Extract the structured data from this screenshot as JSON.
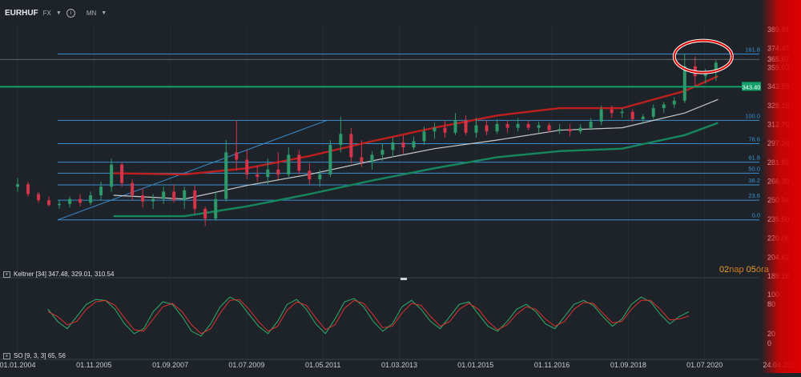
{
  "header": {
    "symbol": "EURHUF",
    "market": "FX",
    "timeframe": "MN",
    "info_icon": "info-icon"
  },
  "colors": {
    "background": "#1d2329",
    "up": "#2e9a6a",
    "down": "#d6344a",
    "keltner_upper": "#c01f1f",
    "keltner_mid": "#c9c9c9",
    "keltner_lower": "#16865f",
    "fib_line": "#3b8fd0",
    "hline": "#11a06a",
    "so_k": "#2fae6a",
    "so_d": "#e0312e",
    "highlight": "#e00000"
  },
  "keltner_label": "Keltner [34] 347.48, 329.01, 310.54",
  "so_label": "SO [9, 3, 3] 65, 56",
  "countdown": {
    "value1": "02",
    "unit1": "nap",
    "value2": "05",
    "unit2": "óra"
  },
  "chart_data": [
    {
      "type": "candlestick",
      "title": "EURHUF",
      "y_axis_ticks": [
        389.91,
        374.47,
        359.03,
        343.59,
        328.15,
        312.7,
        297.26,
        281.82,
        266.38,
        250.94,
        235.5,
        220.06,
        204.62,
        189.18
      ],
      "y_axis_labels": [
        "389.91",
        "374.47",
        "359.03",
        "343.59",
        "328.15",
        "312.70",
        "297.26",
        "281.82",
        "266.38",
        "250.94",
        "235.50",
        "220.06",
        "204.62",
        "189.18"
      ],
      "ylim": [
        189.18,
        400
      ],
      "x_ticks": [
        "01.01.2004",
        "01.11.2005",
        "01.09.2007",
        "01.07.2009",
        "01.05.2011",
        "01.03.2013",
        "01.01.2015",
        "01.11.2016",
        "01.09.2018",
        "01.07.2020",
        "24.04.2022"
      ],
      "last_price_label": "365.67",
      "horizontal_line": {
        "value": 343.4,
        "label": "343.40"
      },
      "fibonacci": {
        "low": 235.0,
        "high": 370.0,
        "levels": [
          {
            "label": "0.0",
            "value": 235.0
          },
          {
            "label": "23.6",
            "value": 251.0
          },
          {
            "label": "38.2",
            "value": 263.5
          },
          {
            "label": "50.0",
            "value": 273.0
          },
          {
            "label": "61.8",
            "value": 282.0
          },
          {
            "label": "78.6",
            "value": 297.0
          },
          {
            "label": "100.0",
            "value": 316.0
          },
          {
            "label": "161.8",
            "value": 370.0
          }
        ]
      },
      "trendline": {
        "from": [
          "2005-04",
          235.0
        ],
        "to": [
          "2011-06",
          316.0
        ]
      },
      "candles": [
        {
          "t": "2004-01",
          "o": 262,
          "h": 269,
          "l": 258,
          "c": 264
        },
        {
          "t": "2004-04",
          "o": 264,
          "h": 266,
          "l": 254,
          "c": 256
        },
        {
          "t": "2004-07",
          "o": 256,
          "h": 258,
          "l": 249,
          "c": 251
        },
        {
          "t": "2004-10",
          "o": 251,
          "h": 254,
          "l": 246,
          "c": 247
        },
        {
          "t": "2005-01",
          "o": 247,
          "h": 251,
          "l": 244,
          "c": 248
        },
        {
          "t": "2005-04",
          "o": 248,
          "h": 254,
          "l": 245,
          "c": 252
        },
        {
          "t": "2005-07",
          "o": 252,
          "h": 256,
          "l": 246,
          "c": 249
        },
        {
          "t": "2005-10",
          "o": 249,
          "h": 258,
          "l": 247,
          "c": 255
        },
        {
          "t": "2006-01",
          "o": 255,
          "h": 266,
          "l": 251,
          "c": 262
        },
        {
          "t": "2006-04",
          "o": 262,
          "h": 285,
          "l": 258,
          "c": 280
        },
        {
          "t": "2006-07",
          "o": 280,
          "h": 282,
          "l": 262,
          "c": 265
        },
        {
          "t": "2006-10",
          "o": 265,
          "h": 268,
          "l": 251,
          "c": 255
        },
        {
          "t": "2007-01",
          "o": 255,
          "h": 261,
          "l": 245,
          "c": 250
        },
        {
          "t": "2007-04",
          "o": 250,
          "h": 256,
          "l": 244,
          "c": 252
        },
        {
          "t": "2007-07",
          "o": 252,
          "h": 262,
          "l": 248,
          "c": 258
        },
        {
          "t": "2007-10",
          "o": 258,
          "h": 264,
          "l": 249,
          "c": 251
        },
        {
          "t": "2008-01",
          "o": 251,
          "h": 262,
          "l": 244,
          "c": 259
        },
        {
          "t": "2008-04",
          "o": 259,
          "h": 263,
          "l": 240,
          "c": 244
        },
        {
          "t": "2008-07",
          "o": 244,
          "h": 246,
          "l": 230,
          "c": 236
        },
        {
          "t": "2008-10",
          "o": 236,
          "h": 258,
          "l": 234,
          "c": 252
        },
        {
          "t": "2009-01",
          "o": 252,
          "h": 300,
          "l": 250,
          "c": 290
        },
        {
          "t": "2009-04",
          "o": 290,
          "h": 316,
          "l": 275,
          "c": 284
        },
        {
          "t": "2009-07",
          "o": 284,
          "h": 292,
          "l": 268,
          "c": 272
        },
        {
          "t": "2009-10",
          "o": 272,
          "h": 279,
          "l": 266,
          "c": 270
        },
        {
          "t": "2010-01",
          "o": 270,
          "h": 285,
          "l": 264,
          "c": 276
        },
        {
          "t": "2010-04",
          "o": 276,
          "h": 290,
          "l": 268,
          "c": 272
        },
        {
          "t": "2010-07",
          "o": 272,
          "h": 294,
          "l": 270,
          "c": 288
        },
        {
          "t": "2010-10",
          "o": 288,
          "h": 292,
          "l": 272,
          "c": 275
        },
        {
          "t": "2011-01",
          "o": 275,
          "h": 281,
          "l": 264,
          "c": 268
        },
        {
          "t": "2011-04",
          "o": 268,
          "h": 276,
          "l": 262,
          "c": 272
        },
        {
          "t": "2011-07",
          "o": 272,
          "h": 300,
          "l": 270,
          "c": 296
        },
        {
          "t": "2011-10",
          "o": 296,
          "h": 319,
          "l": 290,
          "c": 305
        },
        {
          "t": "2012-01",
          "o": 305,
          "h": 310,
          "l": 281,
          "c": 286
        },
        {
          "t": "2012-04",
          "o": 286,
          "h": 300,
          "l": 278,
          "c": 282
        },
        {
          "t": "2012-07",
          "o": 282,
          "h": 291,
          "l": 276,
          "c": 288
        },
        {
          "t": "2012-10",
          "o": 288,
          "h": 297,
          "l": 283,
          "c": 292
        },
        {
          "t": "2013-01",
          "o": 292,
          "h": 302,
          "l": 286,
          "c": 298
        },
        {
          "t": "2013-04",
          "o": 298,
          "h": 304,
          "l": 289,
          "c": 294
        },
        {
          "t": "2013-07",
          "o": 294,
          "h": 303,
          "l": 292,
          "c": 299
        },
        {
          "t": "2013-10",
          "o": 299,
          "h": 311,
          "l": 296,
          "c": 307
        },
        {
          "t": "2014-01",
          "o": 307,
          "h": 314,
          "l": 301,
          "c": 310
        },
        {
          "t": "2014-04",
          "o": 310,
          "h": 316,
          "l": 302,
          "c": 306
        },
        {
          "t": "2014-07",
          "o": 306,
          "h": 322,
          "l": 304,
          "c": 316
        },
        {
          "t": "2014-10",
          "o": 316,
          "h": 320,
          "l": 304,
          "c": 306
        },
        {
          "t": "2015-01",
          "o": 306,
          "h": 318,
          "l": 302,
          "c": 312
        },
        {
          "t": "2015-04",
          "o": 312,
          "h": 316,
          "l": 304,
          "c": 307
        },
        {
          "t": "2015-07",
          "o": 307,
          "h": 317,
          "l": 305,
          "c": 313
        },
        {
          "t": "2015-10",
          "o": 313,
          "h": 316,
          "l": 306,
          "c": 310
        },
        {
          "t": "2016-01",
          "o": 310,
          "h": 318,
          "l": 307,
          "c": 313
        },
        {
          "t": "2016-04",
          "o": 313,
          "h": 316,
          "l": 308,
          "c": 310
        },
        {
          "t": "2016-07",
          "o": 310,
          "h": 315,
          "l": 306,
          "c": 312
        },
        {
          "t": "2016-10",
          "o": 312,
          "h": 314,
          "l": 306,
          "c": 308
        },
        {
          "t": "2017-01",
          "o": 308,
          "h": 313,
          "l": 305,
          "c": 309
        },
        {
          "t": "2017-04",
          "o": 309,
          "h": 313,
          "l": 303,
          "c": 307
        },
        {
          "t": "2017-07",
          "o": 307,
          "h": 313,
          "l": 305,
          "c": 310
        },
        {
          "t": "2017-10",
          "o": 310,
          "h": 318,
          "l": 308,
          "c": 315
        },
        {
          "t": "2018-01",
          "o": 315,
          "h": 328,
          "l": 312,
          "c": 325
        },
        {
          "t": "2018-04",
          "o": 325,
          "h": 328,
          "l": 318,
          "c": 322
        },
        {
          "t": "2018-07",
          "o": 322,
          "h": 326,
          "l": 318,
          "c": 323
        },
        {
          "t": "2018-10",
          "o": 323,
          "h": 325,
          "l": 315,
          "c": 317
        },
        {
          "t": "2019-01",
          "o": 317,
          "h": 321,
          "l": 313,
          "c": 319
        },
        {
          "t": "2019-04",
          "o": 319,
          "h": 329,
          "l": 317,
          "c": 326
        },
        {
          "t": "2019-07",
          "o": 326,
          "h": 331,
          "l": 322,
          "c": 329
        },
        {
          "t": "2019-10",
          "o": 329,
          "h": 335,
          "l": 326,
          "c": 332
        },
        {
          "t": "2020-01",
          "o": 332,
          "h": 370,
          "l": 330,
          "c": 360
        },
        {
          "t": "2020-04",
          "o": 360,
          "h": 368,
          "l": 343,
          "c": 352
        },
        {
          "t": "2020-07",
          "o": 352,
          "h": 358,
          "l": 346,
          "c": 355
        },
        {
          "t": "2020-10",
          "o": 355,
          "h": 365,
          "l": 348,
          "c": 363
        }
      ],
      "series": [
        {
          "name": "Keltner upper",
          "values": [
            [
              2006.3,
              273
            ],
            [
              2008.0,
              272
            ],
            [
              2009.5,
              277
            ],
            [
              2011.0,
              287
            ],
            [
              2012.5,
              299
            ],
            [
              2014.0,
              310
            ],
            [
              2015.5,
              320
            ],
            [
              2017.0,
              326
            ],
            [
              2018.5,
              326
            ],
            [
              2020.0,
              340
            ],
            [
              2020.8,
              352
            ]
          ]
        },
        {
          "name": "Keltner mid",
          "values": [
            [
              2006.3,
              255
            ],
            [
              2008.0,
              252
            ],
            [
              2009.5,
              263
            ],
            [
              2011.0,
              272
            ],
            [
              2012.5,
              283
            ],
            [
              2014.0,
              293
            ],
            [
              2015.5,
              300
            ],
            [
              2017.0,
              308
            ],
            [
              2018.5,
              310
            ],
            [
              2020.0,
              322
            ],
            [
              2020.8,
              333
            ]
          ]
        },
        {
          "name": "Keltner lower",
          "values": [
            [
              2006.3,
              238
            ],
            [
              2008.0,
              238
            ],
            [
              2009.5,
              246
            ],
            [
              2011.0,
              256
            ],
            [
              2012.5,
              267
            ],
            [
              2014.0,
              277
            ],
            [
              2015.5,
              286
            ],
            [
              2017.0,
              291
            ],
            [
              2018.5,
              293
            ],
            [
              2020.0,
              304
            ],
            [
              2020.8,
              314
            ]
          ]
        }
      ]
    },
    {
      "type": "line",
      "title": "SO [9, 3, 3]",
      "y_axis_labels": [
        "100",
        "80",
        "20",
        "0"
      ],
      "ylim": [
        0,
        100
      ],
      "series": [
        {
          "name": "K",
          "values": [
            70,
            45,
            30,
            55,
            80,
            90,
            88,
            70,
            40,
            20,
            30,
            65,
            85,
            80,
            55,
            25,
            15,
            40,
            75,
            95,
            85,
            60,
            35,
            20,
            45,
            80,
            90,
            70,
            40,
            20,
            50,
            85,
            92,
            75,
            45,
            25,
            40,
            75,
            88,
            70,
            45,
            30,
            55,
            80,
            85,
            60,
            35,
            25,
            45,
            70,
            80,
            65,
            40,
            30,
            55,
            80,
            88,
            78,
            55,
            35,
            50,
            80,
            95,
            85,
            60,
            40,
            55,
            65
          ]
        },
        {
          "name": "D",
          "values": [
            65,
            55,
            38,
            45,
            70,
            85,
            88,
            78,
            52,
            28,
            25,
            50,
            75,
            82,
            65,
            38,
            20,
            30,
            62,
            88,
            90,
            70,
            45,
            25,
            35,
            68,
            85,
            78,
            52,
            28,
            38,
            72,
            88,
            82,
            58,
            32,
            35,
            62,
            82,
            78,
            55,
            35,
            45,
            70,
            82,
            70,
            45,
            28,
            38,
            60,
            75,
            70,
            50,
            35,
            45,
            70,
            84,
            82,
            62,
            42,
            45,
            70,
            88,
            88,
            70,
            48,
            50,
            56
          ]
        }
      ]
    }
  ]
}
